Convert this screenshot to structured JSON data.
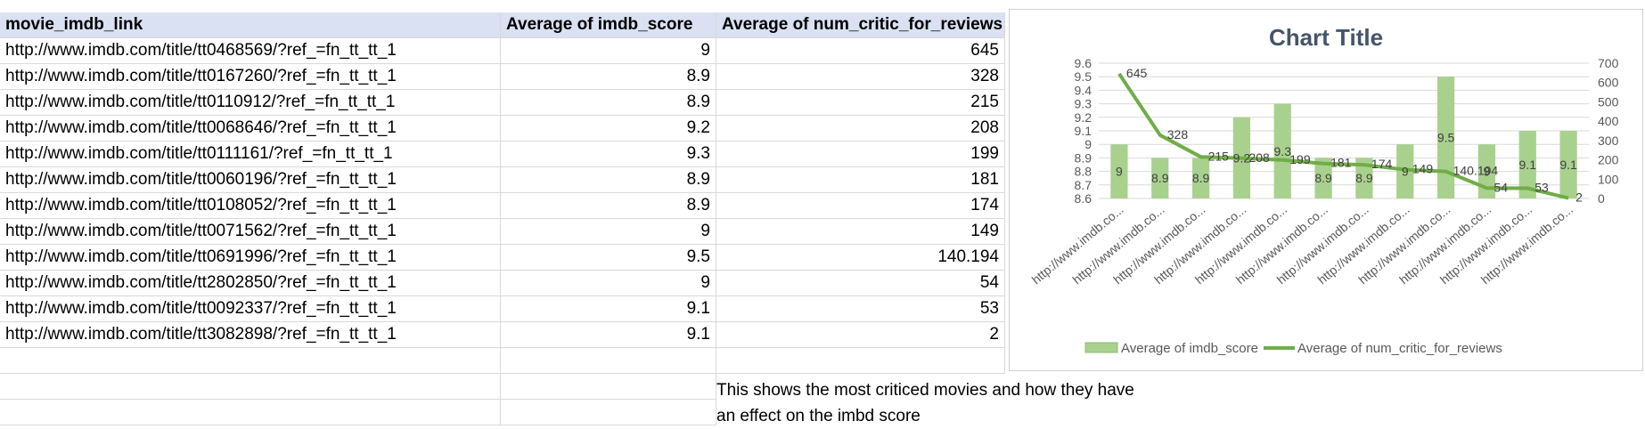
{
  "table": {
    "headers": [
      "movie_imdb_link",
      "Average of imdb_score",
      "Average of num_critic_for_reviews"
    ],
    "rows": [
      {
        "link": "http://www.imdb.com/title/tt0468569/?ref_=fn_tt_tt_1",
        "score": "9",
        "critics": "645"
      },
      {
        "link": "http://www.imdb.com/title/tt0167260/?ref_=fn_tt_tt_1",
        "score": "8.9",
        "critics": "328"
      },
      {
        "link": "http://www.imdb.com/title/tt0110912/?ref_=fn_tt_tt_1",
        "score": "8.9",
        "critics": "215"
      },
      {
        "link": "http://www.imdb.com/title/tt0068646/?ref_=fn_tt_tt_1",
        "score": "9.2",
        "critics": "208"
      },
      {
        "link": "http://www.imdb.com/title/tt0111161/?ref_=fn_tt_tt_1",
        "score": "9.3",
        "critics": "199"
      },
      {
        "link": "http://www.imdb.com/title/tt0060196/?ref_=fn_tt_tt_1",
        "score": "8.9",
        "critics": "181"
      },
      {
        "link": "http://www.imdb.com/title/tt0108052/?ref_=fn_tt_tt_1",
        "score": "8.9",
        "critics": "174"
      },
      {
        "link": "http://www.imdb.com/title/tt0071562/?ref_=fn_tt_tt_1",
        "score": "9",
        "critics": "149"
      },
      {
        "link": "http://www.imdb.com/title/tt0691996/?ref_=fn_tt_tt_1",
        "score": "9.5",
        "critics": "140.194"
      },
      {
        "link": "http://www.imdb.com/title/tt2802850/?ref_=fn_tt_tt_1",
        "score": "9",
        "critics": "54"
      },
      {
        "link": "http://www.imdb.com/title/tt0092337/?ref_=fn_tt_tt_1",
        "score": "9.1",
        "critics": "53"
      },
      {
        "link": "http://www.imdb.com/title/tt3082898/?ref_=fn_tt_tt_1",
        "score": "9.1",
        "critics": "2"
      }
    ]
  },
  "note": {
    "line1": "This shows the most criticed movies and how they have",
    "line2": "an effect on the imbd score"
  },
  "chart_data": {
    "type": "bar",
    "title": "Chart Title",
    "categories": [
      "http://www.imdb.co...",
      "http://www.imdb.co...",
      "http://www.imdb.co...",
      "http://www.imdb.co...",
      "http://www.imdb.co...",
      "http://www.imdb.co...",
      "http://www.imdb.co...",
      "http://www.imdb.co...",
      "http://www.imdb.co...",
      "http://www.imdb.co...",
      "http://www.imdb.co...",
      "http://www.imdb.co..."
    ],
    "series": [
      {
        "name": "Average of imdb_score",
        "type": "bar",
        "axis": "left",
        "values": [
          9,
          8.9,
          8.9,
          9.2,
          9.3,
          8.9,
          8.9,
          9,
          9.5,
          9,
          9.1,
          9.1
        ],
        "color": "#a9d18e"
      },
      {
        "name": "Average of num_critic_for_reviews",
        "type": "line",
        "axis": "right",
        "values": [
          645,
          328,
          215,
          208,
          199,
          181,
          174,
          149,
          140.194,
          54,
          53,
          2
        ],
        "color": "#70ad47"
      }
    ],
    "ylim_left": [
      8.6,
      9.6
    ],
    "yticks_left": [
      "8.6",
      "8.7",
      "8.8",
      "8.9",
      "9",
      "9.1",
      "9.2",
      "9.3",
      "9.4",
      "9.5",
      "9.6"
    ],
    "ylim_right": [
      0,
      700
    ],
    "yticks_right": [
      "0",
      "100",
      "200",
      "300",
      "400",
      "500",
      "600",
      "700"
    ],
    "grid": true,
    "legend": "bottom",
    "colors": {
      "bar": "#a9d18e",
      "line": "#70ad47",
      "label": "#404040",
      "title": "#44546a",
      "axis_label": "#595959"
    }
  }
}
